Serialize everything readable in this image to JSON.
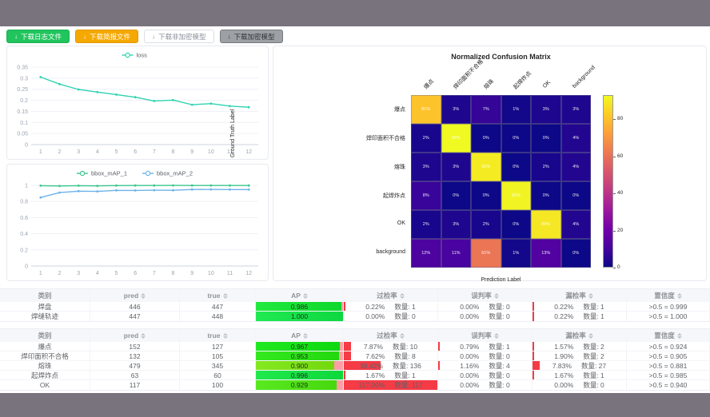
{
  "toolbar": {
    "buttons": [
      {
        "label": "下载日志文件",
        "type": "success"
      },
      {
        "label": "下载简报文件",
        "type": "warning"
      },
      {
        "label": "下载非加密模型",
        "type": "plain"
      },
      {
        "label": "下载加密模型",
        "type": "info"
      }
    ],
    "download_icon": "↓"
  },
  "chart_data": [
    {
      "type": "line",
      "title": "",
      "legend_position": "top-center",
      "x": [
        "1",
        "2",
        "3",
        "4",
        "5",
        "6",
        "7",
        "8",
        "9",
        "10",
        "11",
        "12"
      ],
      "yticks": [
        0,
        0.05,
        0.1,
        0.15,
        0.2,
        0.25,
        0.3,
        0.35
      ],
      "ylim": [
        0,
        0.35
      ],
      "grid": true,
      "series": [
        {
          "name": "loss",
          "color": "#2fd3b2",
          "values": [
            0.305,
            0.273,
            0.249,
            0.237,
            0.226,
            0.214,
            0.197,
            0.201,
            0.18,
            0.185,
            0.174,
            0.169
          ]
        }
      ]
    },
    {
      "type": "line",
      "title": "",
      "legend_position": "top-center",
      "x": [
        "1",
        "2",
        "3",
        "4",
        "5",
        "6",
        "7",
        "8",
        "9",
        "10",
        "11",
        "12"
      ],
      "yticks": [
        0,
        0.2,
        0.4,
        0.6,
        0.8,
        1
      ],
      "ylim": [
        0,
        1
      ],
      "grid": true,
      "series": [
        {
          "name": "bbox_mAP_1",
          "color": "#3bc78e",
          "values": [
            0.996,
            0.992,
            0.996,
            0.993,
            0.997,
            0.998,
            0.998,
            0.999,
            0.998,
            0.998,
            0.998,
            0.998
          ]
        },
        {
          "name": "bbox_mAP_2",
          "color": "#6cb3ea",
          "values": [
            0.85,
            0.91,
            0.928,
            0.925,
            0.938,
            0.937,
            0.94,
            0.939,
            0.949,
            0.95,
            0.948,
            0.948
          ]
        }
      ]
    },
    {
      "type": "heatmap",
      "title": "Normalized Confusion Matrix",
      "xlabel": "Prediction Label",
      "ylabel": "Ground Truth Label",
      "labels": [
        "爆点",
        "焊印面积不合格",
        "熔珠",
        "起焊炸点",
        "OK",
        "background"
      ],
      "unit": "%",
      "matrix": [
        [
          81,
          3,
          7,
          1,
          3,
          3
        ],
        [
          2,
          93,
          0,
          0,
          0,
          4
        ],
        [
          3,
          3,
          90,
          0,
          2,
          4
        ],
        [
          8,
          0,
          0,
          92,
          0,
          0
        ],
        [
          2,
          3,
          2,
          0,
          89,
          4
        ],
        [
          12,
          11,
          61,
          1,
          13,
          0
        ]
      ],
      "vmin": 0,
      "vmax": 93,
      "colormap": "plasma",
      "colorbar_ticks": [
        0,
        20,
        40,
        60,
        80
      ]
    }
  ],
  "table_headers": [
    {
      "label": "类别",
      "sortable": false
    },
    {
      "label": "pred",
      "sortable": true
    },
    {
      "label": "true",
      "sortable": true
    },
    {
      "label": "AP",
      "sortable": true
    },
    {
      "label": "过检率",
      "sortable": true
    },
    {
      "label": "误判率",
      "sortable": true
    },
    {
      "label": "漏检率",
      "sortable": true
    },
    {
      "label": "置信度",
      "sortable": true
    }
  ],
  "tables": [
    {
      "rows": [
        {
          "cls": "焊盘",
          "pred": "446",
          "true": "447",
          "ap": 0.986,
          "ap_label": "0.986",
          "over": {
            "rate": "0.22%",
            "value": 0.22,
            "count": "数量: 1"
          },
          "mis": {
            "rate": "0.00%",
            "value": 0,
            "count": "数量: 0"
          },
          "miss": {
            "rate": "0.22%",
            "value": 0.22,
            "count": "数量: 1"
          },
          "conf": ">0.5 = 0.999"
        },
        {
          "cls": "焊缝轨迹",
          "pred": "447",
          "true": "448",
          "ap": 1.0,
          "ap_label": "1.000",
          "over": {
            "rate": "0.00%",
            "value": 0,
            "count": "数量: 0"
          },
          "mis": {
            "rate": "0.00%",
            "value": 0,
            "count": "数量: 0"
          },
          "miss": {
            "rate": "0.22%",
            "value": 0.22,
            "count": "数量: 1"
          },
          "conf": ">0.5 = 1.000"
        }
      ]
    },
    {
      "rows": [
        {
          "cls": "爆点",
          "pred": "152",
          "true": "127",
          "ap": 0.967,
          "ap_label": "0.967",
          "over": {
            "rate": "7.87%",
            "value": 7.87,
            "count": "数量: 10"
          },
          "mis": {
            "rate": "0.79%",
            "value": 0.79,
            "count": "数量: 1"
          },
          "miss": {
            "rate": "1.57%",
            "value": 1.57,
            "count": "数量: 2"
          },
          "conf": ">0.5 = 0.924"
        },
        {
          "cls": "焊印面积不合格",
          "pred": "132",
          "true": "105",
          "ap": 0.953,
          "ap_label": "0.953",
          "over": {
            "rate": "7.62%",
            "value": 7.62,
            "count": "数量: 8"
          },
          "mis": {
            "rate": "0.00%",
            "value": 0,
            "count": "数量: 0"
          },
          "miss": {
            "rate": "1.90%",
            "value": 1.9,
            "count": "数量: 2"
          },
          "conf": ">0.5 = 0.905"
        },
        {
          "cls": "熔珠",
          "pred": "479",
          "true": "345",
          "ap": 0.9,
          "ap_label": "0.900",
          "over": {
            "rate": "39.42%",
            "value": 39.42,
            "count": "数量: 136"
          },
          "mis": {
            "rate": "1.16%",
            "value": 1.16,
            "count": "数量: 4"
          },
          "miss": {
            "rate": "7.83%",
            "value": 7.83,
            "count": "数量: 27"
          },
          "conf": ">0.5 = 0.881"
        },
        {
          "cls": "起焊炸点",
          "pred": "63",
          "true": "60",
          "ap": 0.996,
          "ap_label": "0.996",
          "over": {
            "rate": "1.67%",
            "value": 1.67,
            "count": "数量: 1"
          },
          "mis": {
            "rate": "0.00%",
            "value": 0,
            "count": "数量: 0"
          },
          "miss": {
            "rate": "1.67%",
            "value": 1.67,
            "count": "数量: 1"
          },
          "conf": ">0.5 = 0.985"
        },
        {
          "cls": "OK",
          "pred": "117",
          "true": "100",
          "ap": 0.929,
          "ap_label": "0.929",
          "over": {
            "rate": "117.00%",
            "value": 117,
            "count": "数量: 117"
          },
          "mis": {
            "rate": "0.00%",
            "value": 0,
            "count": "数量: 0"
          },
          "miss": {
            "rate": "0.00%",
            "value": 0,
            "count": "数量: 0"
          },
          "conf": ">0.5 = 0.940"
        }
      ]
    }
  ]
}
